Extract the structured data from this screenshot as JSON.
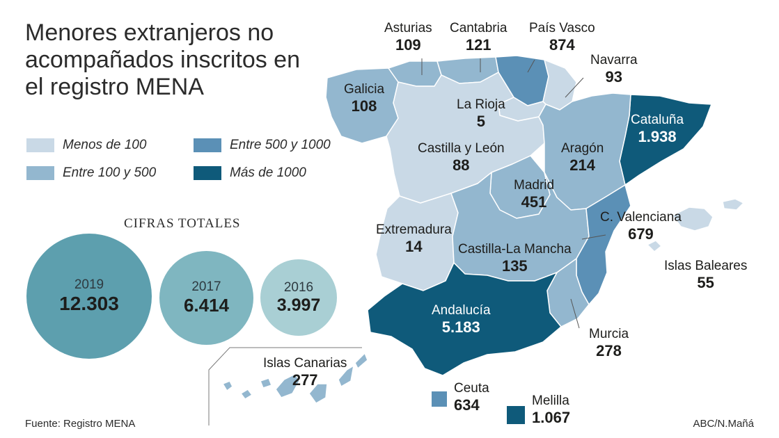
{
  "title": "Menores extranjeros no acompañados inscritos en el registro MENA",
  "legend": [
    {
      "label": "Menos de 100",
      "color": "#c9d9e6"
    },
    {
      "label": "Entre 100 y 500",
      "color": "#93b7cf"
    },
    {
      "label": "Entre 500 y 1000",
      "color": "#5b90b6"
    },
    {
      "label": "Más de 1000",
      "color": "#0f5a7a"
    }
  ],
  "totals": {
    "heading": "CIFRAS TOTALES",
    "items": [
      {
        "year": "2019",
        "value": "12.303",
        "color": "#5d9fae"
      },
      {
        "year": "2017",
        "value": "6.414",
        "color": "#7fb6c0"
      },
      {
        "year": "2016",
        "value": "3.997",
        "color": "#a9cfd4"
      }
    ]
  },
  "regions": {
    "asturias": {
      "name": "Asturias",
      "value": "109"
    },
    "cantabria": {
      "name": "Cantabria",
      "value": "121"
    },
    "pais_vasco": {
      "name": "País Vasco",
      "value": "874"
    },
    "navarra": {
      "name": "Navarra",
      "value": "93"
    },
    "galicia": {
      "name": "Galicia",
      "value": "108"
    },
    "la_rioja": {
      "name": "La Rioja",
      "value": "5"
    },
    "cataluna": {
      "name": "Cataluña",
      "value": "1.938"
    },
    "castilla_leon": {
      "name": "Castilla y León",
      "value": "88"
    },
    "aragon": {
      "name": "Aragón",
      "value": "214"
    },
    "madrid": {
      "name": "Madrid",
      "value": "451"
    },
    "c_valenciana": {
      "name": "C. Valenciana",
      "value": "679"
    },
    "extremadura": {
      "name": "Extremadura",
      "value": "14"
    },
    "castilla_la_mancha": {
      "name": "Castilla-La Mancha",
      "value": "135"
    },
    "islas_baleares": {
      "name": "Islas Baleares",
      "value": "55"
    },
    "andalucia": {
      "name": "Andalucía",
      "value": "5.183"
    },
    "murcia": {
      "name": "Murcia",
      "value": "278"
    },
    "islas_canarias": {
      "name": "Islas Canarias",
      "value": "277"
    },
    "ceuta": {
      "name": "Ceuta",
      "value": "634"
    },
    "melilla": {
      "name": "Melilla",
      "value": "1.067"
    }
  },
  "footer": {
    "source": "Fuente: Registro MENA",
    "credit": "ABC/N.Mañá"
  }
}
